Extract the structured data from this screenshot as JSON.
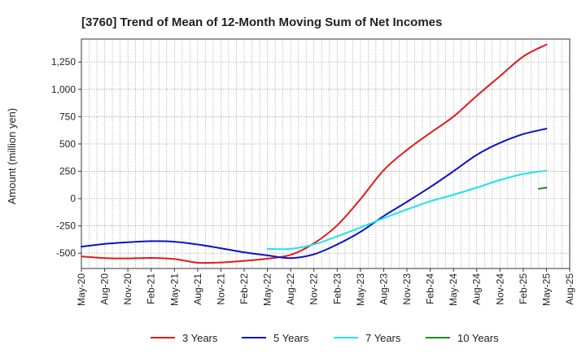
{
  "chart_data": {
    "type": "line",
    "title": "[3760]  Trend of Mean of 12-Month Moving Sum of Net Incomes",
    "ylabel": "Amount (million yen)",
    "xlabel": "",
    "ylim": [
      -640,
      1460
    ],
    "y_ticks": [
      -500,
      -250,
      0,
      250,
      500,
      750,
      1000,
      1250
    ],
    "y_tick_labels": [
      "-500",
      "-250",
      "0",
      "250",
      "500",
      "750",
      "1,000",
      "1,250"
    ],
    "x_tick_labels": [
      "May-20",
      "Aug-20",
      "Nov-20",
      "Feb-21",
      "May-21",
      "Aug-21",
      "Nov-21",
      "Feb-22",
      "May-22",
      "Aug-22",
      "Nov-22",
      "Feb-23",
      "May-23",
      "Aug-23",
      "Nov-23",
      "Feb-24",
      "May-24",
      "Aug-24",
      "Nov-24",
      "Feb-25",
      "May-25",
      "Aug-25"
    ],
    "grid": true,
    "legend_position": "bottom",
    "x_unit": "months since May-20",
    "series": [
      {
        "name": "3 Years",
        "color": "#e31a1c",
        "x": [
          0,
          3,
          6,
          9,
          12,
          15,
          18,
          21,
          24,
          27,
          30,
          33,
          36,
          39,
          42,
          45,
          48,
          51,
          54,
          57,
          60
        ],
        "values": [
          -530,
          -545,
          -548,
          -543,
          -553,
          -587,
          -585,
          -570,
          -550,
          -515,
          -410,
          -245,
          -5,
          260,
          445,
          600,
          750,
          940,
          1120,
          1300,
          1410
        ]
      },
      {
        "name": "5 Years",
        "color": "#0a14c8",
        "x": [
          0,
          3,
          6,
          9,
          12,
          15,
          18,
          21,
          24,
          27,
          30,
          33,
          36,
          39,
          42,
          45,
          48,
          51,
          54,
          57,
          60
        ],
        "values": [
          -440,
          -415,
          -400,
          -390,
          -395,
          -420,
          -455,
          -492,
          -520,
          -545,
          -510,
          -420,
          -305,
          -160,
          -30,
          105,
          250,
          400,
          510,
          590,
          640
        ]
      },
      {
        "name": "7 Years",
        "color": "#1ae5f0",
        "x": [
          24,
          27,
          30,
          33,
          36,
          39,
          42,
          45,
          48,
          51,
          54,
          57,
          60
        ],
        "values": [
          -460,
          -460,
          -420,
          -345,
          -265,
          -180,
          -100,
          -25,
          35,
          100,
          170,
          225,
          255
        ]
      },
      {
        "name": "10 Years",
        "color": "#228b22",
        "x": [
          59,
          60
        ],
        "values": [
          90,
          100
        ]
      }
    ]
  }
}
